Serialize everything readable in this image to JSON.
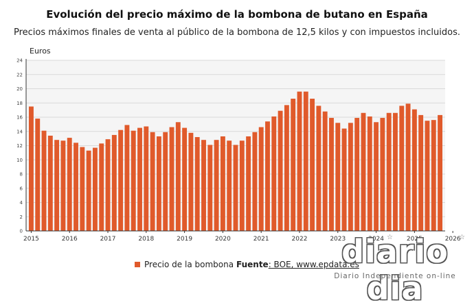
{
  "chart_data": {
    "type": "bar",
    "title": "Evolución del precio máximo de la bombona de butano en España",
    "subtitle": "Precios máximos finales de venta al público de la bombona de 12,5 kilos y con impuestos incluidos.",
    "ylabel": "Euros",
    "xlabel": "",
    "ylim": [
      0,
      24
    ],
    "yticks": [
      "0",
      "2",
      "4",
      "6",
      "8",
      "10",
      "12",
      "14",
      "16",
      "18",
      "20",
      "22",
      "24"
    ],
    "xtick_labels": [
      "2015",
      "2016",
      "2017",
      "2018",
      "2019",
      "2020",
      "2021",
      "2022",
      "2023",
      "2024",
      "2025",
      "2026"
    ],
    "grid": true,
    "legend_position": "bottom",
    "series": [
      {
        "name": "Precio de la bombona",
        "color": "#e05a2b",
        "values": [
          17.5,
          15.8,
          14.1,
          13.4,
          12.8,
          12.7,
          13.1,
          12.4,
          11.8,
          11.3,
          11.7,
          12.3,
          12.9,
          13.5,
          14.2,
          14.9,
          14.1,
          14.5,
          14.7,
          13.9,
          13.3,
          13.9,
          14.6,
          15.3,
          14.5,
          13.8,
          13.2,
          12.8,
          12.1,
          12.8,
          13.3,
          12.7,
          12.1,
          12.7,
          13.3,
          13.9,
          14.6,
          15.4,
          16.1,
          16.9,
          17.7,
          18.6,
          19.6,
          19.6,
          18.6,
          17.6,
          16.8,
          15.9,
          15.2,
          14.4,
          15.2,
          15.9,
          16.6,
          16.1,
          15.3,
          15.9,
          16.6,
          16.6,
          17.6,
          17.9,
          17.1,
          16.3,
          15.5,
          15.6,
          16.3
        ]
      }
    ]
  },
  "source": {
    "label": "Fuente",
    "text": ": BOE, www.epdata.es"
  },
  "logo": {
    "name": "diario dia",
    "tagline": "Diario Independiente on-line"
  }
}
